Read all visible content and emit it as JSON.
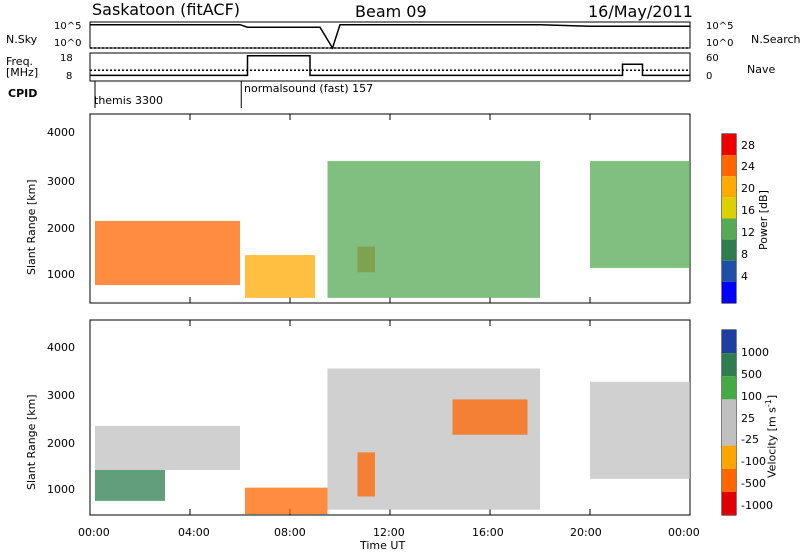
{
  "header": {
    "station": "Saskatoon (fitACF)",
    "beam": "Beam 09",
    "date": "16/May/2011"
  },
  "panels": {
    "nsky": {
      "label": "N.Sky",
      "right_label": "N.Search",
      "ticks_left": [
        "10^5",
        "10^0"
      ],
      "ticks_right": [
        "10^5",
        "10^0"
      ]
    },
    "freq": {
      "label_line1": "Freq.",
      "label_line2": "[MHz]",
      "right_label": "Nave",
      "ticks_left": [
        "18",
        "8"
      ],
      "ticks_right": [
        "60",
        "0"
      ]
    },
    "cpid": {
      "label": "CPID",
      "modes": [
        "themis 3300",
        "normalsound (fast) 157"
      ]
    },
    "power": {
      "ylabel": "Slant Range [km]",
      "yticks": [
        "4000",
        "3000",
        "2000",
        "1000"
      ],
      "colorbar_label": "Power [dB]",
      "colorbar_ticks": [
        "28",
        "24",
        "20",
        "16",
        "12",
        "8",
        "4"
      ]
    },
    "velocity": {
      "ylabel": "Slant Range [km]",
      "yticks": [
        "4000",
        "3000",
        "2000",
        "1000"
      ],
      "colorbar_label": "Velocity [m s",
      "colorbar_label_sup": "-1",
      "colorbar_label_end": "]",
      "colorbar_ticks": [
        "1000",
        "500",
        "100",
        "25",
        "-25",
        "-100",
        "-500",
        "-1000"
      ]
    }
  },
  "xaxis": {
    "label": "Time UT",
    "ticks": [
      "00:00",
      "04:00",
      "08:00",
      "12:00",
      "16:00",
      "20:00",
      "00:00"
    ]
  },
  "colors": {
    "power_scale": [
      "#ee0000",
      "#ff6600",
      "#ffaa00",
      "#ddd000",
      "#55aa55",
      "#2e7d4f",
      "#1f4fa8",
      "#0000ff"
    ],
    "velocity_scale": [
      "#1f3fa0",
      "#2e7d4f",
      "#44aa44",
      "#c0c0c0",
      "#c0c0c0",
      "#ffa500",
      "#ff6600",
      "#e00000"
    ]
  },
  "chart_data": [
    {
      "type": "line",
      "title": "N.Sky / N.Search",
      "x_range_hours": [
        0,
        24
      ],
      "yscale": "log",
      "ylim": [
        1,
        100000
      ],
      "series": [
        {
          "name": "N.Sky",
          "x": [
            0,
            6,
            6.3,
            9.2,
            9.7,
            10,
            18,
            20,
            24
          ],
          "y": [
            30000,
            30000,
            10000,
            10000,
            1,
            30000,
            30000,
            15000,
            15000
          ]
        },
        {
          "name": "N.Search",
          "x": [
            0,
            24
          ],
          "y": [
            1,
            1
          ]
        }
      ]
    },
    {
      "type": "line",
      "title": "Freq / Nave",
      "x_range_hours": [
        0,
        24
      ],
      "ylim": [
        8,
        18
      ],
      "series": [
        {
          "name": "Freq",
          "x": [
            0,
            6.3,
            6.3,
            8.8,
            8.8,
            9.8,
            18,
            20,
            21.3,
            21.3,
            22.1,
            22.1,
            24
          ],
          "y": [
            10,
            10,
            17,
            17,
            10,
            10,
            10,
            10,
            10,
            14,
            14,
            10,
            10
          ]
        },
        {
          "name": "Nave",
          "x": [
            0,
            6.3,
            9.8,
            18,
            20,
            24
          ],
          "y": [
            23,
            23,
            23,
            23,
            23,
            23
          ]
        }
      ]
    },
    {
      "type": "heatmap",
      "title": "Power [dB]",
      "xlabel": "Time UT",
      "ylabel": "Slant Range [km]",
      "x_range_hours": [
        0,
        24
      ],
      "ylim": [
        180,
        4600
      ],
      "zlim": [
        0,
        30
      ],
      "regions": [
        {
          "t0": 0.2,
          "t1": 6.0,
          "r0": 600,
          "r1": 2100,
          "power": 26
        },
        {
          "t0": 6.2,
          "t1": 9.0,
          "r0": 300,
          "r1": 1300,
          "power": 20
        },
        {
          "t0": 10.7,
          "t1": 11.4,
          "r0": 900,
          "r1": 1500,
          "power": 25
        },
        {
          "t0": 9.5,
          "t1": 18.0,
          "r0": 300,
          "r1": 3500,
          "power": 12
        },
        {
          "t0": 20.0,
          "t1": 24.0,
          "r0": 1000,
          "r1": 3500,
          "power": 14
        }
      ]
    },
    {
      "type": "heatmap",
      "title": "Velocity [m s-1]",
      "xlabel": "Time UT",
      "ylabel": "Slant Range [km]",
      "x_range_hours": [
        0,
        24
      ],
      "ylim": [
        180,
        4600
      ],
      "zlim": [
        -1000,
        1000
      ],
      "regions": [
        {
          "t0": 0.2,
          "t1": 3.0,
          "r0": 500,
          "r1": 1200,
          "velocity": 200
        },
        {
          "t0": 0.2,
          "t1": 6.0,
          "r0": 1200,
          "r1": 2200,
          "velocity": 0
        },
        {
          "t0": 6.2,
          "t1": 9.5,
          "r0": 200,
          "r1": 800,
          "velocity": -150
        },
        {
          "t0": 10.7,
          "t1": 11.4,
          "r0": 600,
          "r1": 1600,
          "velocity": -300
        },
        {
          "t0": 14.5,
          "t1": 17.5,
          "r0": 2000,
          "r1": 2800,
          "velocity": -400
        },
        {
          "t0": 9.5,
          "t1": 18.0,
          "r0": 300,
          "r1": 3500,
          "velocity": 0
        },
        {
          "t0": 20.0,
          "t1": 24.0,
          "r0": 1000,
          "r1": 3200,
          "velocity": 0
        }
      ]
    }
  ]
}
